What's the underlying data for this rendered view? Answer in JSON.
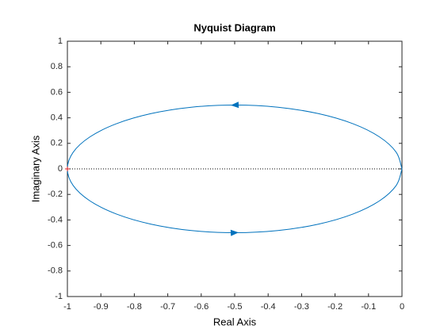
{
  "chart_data": {
    "type": "line",
    "title": "Nyquist Diagram",
    "x_label": "Real Axis",
    "y_label": "Imaginary Axis",
    "x": [
      0,
      -0.017,
      -0.067,
      -0.1464,
      -0.25,
      -0.3706,
      -0.5,
      -0.6294,
      -0.75,
      -0.8536,
      -0.933,
      -0.983,
      -1,
      -0.983,
      -0.933,
      -0.8536,
      -0.75,
      -0.6294,
      -0.5,
      -0.3706,
      -0.25,
      -0.1464,
      -0.067,
      -0.017,
      0
    ],
    "series": [
      {
        "color": "#0072bd",
        "values": [
          0,
          0.1294,
          0.25,
          0.3536,
          0.433,
          0.483,
          0.5,
          0.483,
          0.433,
          0.3536,
          0.25,
          0.1294,
          0,
          -0.1294,
          -0.25,
          -0.3536,
          -0.433,
          -0.483,
          -0.5,
          -0.483,
          -0.433,
          -0.3536,
          -0.25,
          -0.1294,
          0
        ]
      }
    ],
    "critical_point": {
      "x": -1,
      "y": 0,
      "color": "#e02020"
    },
    "xlim": [
      -1,
      0
    ],
    "ylim": [
      -1,
      1
    ],
    "xticks": [
      -1,
      -0.9,
      -0.8,
      -0.7,
      -0.6,
      -0.5,
      -0.4,
      -0.3,
      -0.2,
      -0.1,
      0
    ],
    "yticks": [
      -1,
      -0.8,
      -0.6,
      -0.4,
      -0.2,
      0,
      0.2,
      0.4,
      0.6,
      0.8,
      1
    ]
  }
}
